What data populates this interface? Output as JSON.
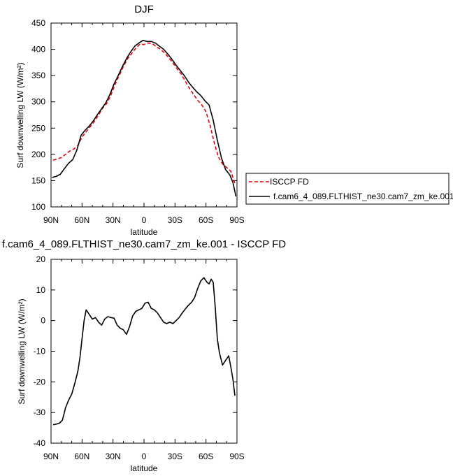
{
  "chart_data": [
    {
      "type": "line",
      "title": "DJF",
      "xlabel": "latitude",
      "ylabel": "Surf downwelling LW (W/m²)",
      "xlim": [
        90,
        -90
      ],
      "ylim": [
        100,
        450
      ],
      "x_ticks": [
        90,
        60,
        30,
        0,
        -30,
        -60,
        -90
      ],
      "x_tick_labels": [
        "90N",
        "60N",
        "30N",
        "0",
        "30S",
        "60S",
        "90S"
      ],
      "y_ticks": [
        100,
        150,
        200,
        250,
        300,
        350,
        400,
        450
      ],
      "y_tick_labels": [
        "100",
        "150",
        "200",
        "250",
        "300",
        "350",
        "400",
        "450"
      ],
      "legend_position": "right",
      "series": [
        {
          "name": "ISCCP FD",
          "color": "#e8000b",
          "dash": "dashed",
          "x": [
            88,
            84,
            80,
            76,
            72,
            68,
            64,
            60,
            56,
            52,
            48,
            44,
            40,
            36,
            32,
            28,
            24,
            20,
            16,
            12,
            8,
            4,
            0,
            -4,
            -8,
            -12,
            -16,
            -20,
            -24,
            -28,
            -32,
            -36,
            -40,
            -44,
            -48,
            -52,
            -56,
            -60,
            -64,
            -68,
            -72,
            -76,
            -80,
            -84,
            -88
          ],
          "y": [
            189,
            191,
            194,
            200,
            206,
            210,
            217,
            233,
            243,
            253,
            263,
            275,
            288,
            297,
            313,
            333,
            350,
            367,
            382,
            392,
            402,
            410,
            409,
            412,
            411,
            405,
            400,
            393,
            384,
            374,
            363,
            353,
            339,
            326,
            314,
            303,
            294,
            281,
            255,
            222,
            195,
            182,
            175,
            168,
            145
          ]
        },
        {
          "name": "f.cam6_4_089.FLTHIST_ne30.cam7_zm_ke.001",
          "color": "#000000",
          "dash": "solid",
          "x": [
            89,
            85,
            81,
            77,
            73,
            69,
            65,
            61,
            57,
            53,
            49,
            45,
            41,
            37,
            33,
            29,
            25,
            21,
            17,
            13,
            9,
            5,
            1,
            -3,
            -7,
            -11,
            -15,
            -19,
            -23,
            -27,
            -31,
            -35,
            -39,
            -43,
            -47,
            -51,
            -55,
            -59,
            -63,
            -67,
            -71,
            -75,
            -79,
            -83,
            -86,
            -89
          ],
          "y": [
            156,
            158,
            162,
            173,
            183,
            190,
            208,
            236,
            246,
            254,
            264,
            276,
            287,
            298,
            314,
            334,
            350,
            367,
            382,
            395,
            406,
            412,
            417,
            415,
            415,
            412,
            406,
            400,
            391,
            381,
            370,
            360,
            350,
            338,
            328,
            319,
            312,
            302,
            294,
            265,
            227,
            193,
            171,
            161,
            147,
            120
          ]
        }
      ]
    },
    {
      "type": "line",
      "title": "f.cam6_4_089.FLTHIST_ne30.cam7_zm_ke.001 - ISCCP FD",
      "xlabel": "latitude",
      "ylabel": "Surf downwelling LW (W/m²)",
      "xlim": [
        90,
        -90
      ],
      "ylim": [
        -40,
        20
      ],
      "x_ticks": [
        90,
        60,
        30,
        0,
        -30,
        -60,
        -90
      ],
      "x_tick_labels": [
        "90N",
        "60N",
        "30N",
        "0",
        "30S",
        "60S",
        "90S"
      ],
      "y_ticks": [
        -40,
        -30,
        -20,
        -10,
        0,
        10,
        20
      ],
      "y_tick_labels": [
        "-40",
        "-30",
        "-20",
        "-10",
        "0",
        "10",
        "20"
      ],
      "series": [
        {
          "color": "#000000",
          "dash": "solid",
          "x": [
            88,
            85,
            82,
            79,
            76,
            73,
            70,
            67,
            64,
            62,
            60,
            58,
            56,
            53,
            50,
            47,
            44,
            41,
            38,
            35,
            32,
            29,
            26,
            23,
            20,
            17,
            14,
            11,
            8,
            5,
            2,
            -1,
            -4,
            -7,
            -10,
            -13,
            -16,
            -19,
            -22,
            -25,
            -28,
            -31,
            -34,
            -37,
            -40,
            -43,
            -46,
            -49,
            -52,
            -55,
            -58,
            -61,
            -63,
            -65,
            -67,
            -69,
            -71,
            -73,
            -76,
            -79,
            -82,
            -84,
            -86,
            -88
          ],
          "y": [
            -34,
            -33.8,
            -33.5,
            -32.5,
            -28.5,
            -26,
            -24,
            -20.5,
            -16.5,
            -12,
            -6,
            0,
            3.5,
            2,
            0.5,
            1,
            -0.5,
            -1.5,
            0.5,
            1.3,
            1,
            0.8,
            -1.5,
            -2.5,
            -3,
            -4.5,
            -2,
            1.5,
            3,
            3.5,
            4,
            5.7,
            6,
            4,
            3.5,
            2.5,
            1,
            -0.5,
            -1,
            -0.5,
            -1,
            0,
            1,
            2.5,
            3.8,
            5,
            6,
            7.5,
            10.5,
            13,
            14,
            12.5,
            12,
            13.5,
            12.5,
            4,
            -6,
            -10.5,
            -14.5,
            -13,
            -11.5,
            -15,
            -19,
            -24.5
          ]
        }
      ]
    }
  ]
}
